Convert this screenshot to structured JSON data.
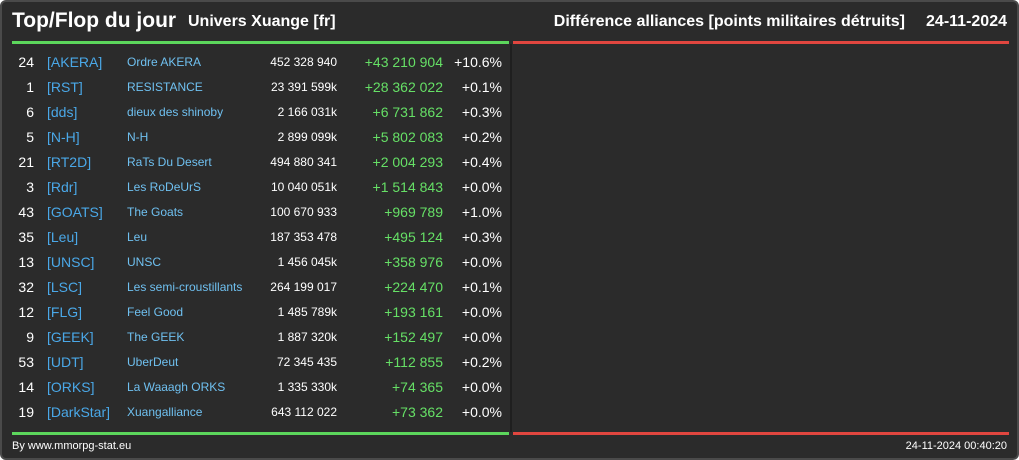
{
  "header": {
    "title": "Top/Flop du jour",
    "universe": "Univers Xuange [fr]",
    "metric": "Différence alliances [points militaires détruits]",
    "date": "24-11-2024"
  },
  "colors": {
    "top_bar": "#5cd65c",
    "flop_bar": "#e0463f",
    "positive_delta": "#66e066",
    "tag": "#4aa8e8",
    "name": "#6fc0f0",
    "background": "#2b2b2b"
  },
  "top_rows": [
    {
      "rank": "24",
      "tag": "[AKERA]",
      "name": "Ordre AKERA",
      "points": "452 328 940",
      "delta": "+43 210 904",
      "pct": "+10.6%"
    },
    {
      "rank": "1",
      "tag": "[RST]",
      "name": "RESISTANCE",
      "points": "23 391 599k",
      "delta": "+28 362 022",
      "pct": "+0.1%"
    },
    {
      "rank": "6",
      "tag": "[dds]",
      "name": "dieux des shinoby",
      "points": "2 166 031k",
      "delta": "+6 731 862",
      "pct": "+0.3%"
    },
    {
      "rank": "5",
      "tag": "[N-H]",
      "name": "N-H",
      "points": "2 899 099k",
      "delta": "+5 802 083",
      "pct": "+0.2%"
    },
    {
      "rank": "21",
      "tag": "[RT2D]",
      "name": "RaTs Du Desert",
      "points": "494 880 341",
      "delta": "+2 004 293",
      "pct": "+0.4%"
    },
    {
      "rank": "3",
      "tag": "[Rdr]",
      "name": "Les RoDeUrS",
      "points": "10 040 051k",
      "delta": "+1 514 843",
      "pct": "+0.0%"
    },
    {
      "rank": "43",
      "tag": "[GOATS]",
      "name": "The Goats",
      "points": "100 670 933",
      "delta": "+969 789",
      "pct": "+1.0%"
    },
    {
      "rank": "35",
      "tag": "[Leu]",
      "name": "Leu",
      "points": "187 353 478",
      "delta": "+495 124",
      "pct": "+0.3%"
    },
    {
      "rank": "13",
      "tag": "[UNSC]",
      "name": "UNSC",
      "points": "1 456 045k",
      "delta": "+358 976",
      "pct": "+0.0%"
    },
    {
      "rank": "32",
      "tag": "[LSC]",
      "name": "Les semi-croustillants",
      "points": "264 199 017",
      "delta": "+224 470",
      "pct": "+0.1%"
    },
    {
      "rank": "12",
      "tag": "[FLG]",
      "name": "Feel Good",
      "points": "1 485 789k",
      "delta": "+193 161",
      "pct": "+0.0%"
    },
    {
      "rank": "9",
      "tag": "[GEEK]",
      "name": "The GEEK",
      "points": "1 887 320k",
      "delta": "+152 497",
      "pct": "+0.0%"
    },
    {
      "rank": "53",
      "tag": "[UDT]",
      "name": "UberDeut",
      "points": "72 345 435",
      "delta": "+112 855",
      "pct": "+0.2%"
    },
    {
      "rank": "14",
      "tag": "[ORKS]",
      "name": "La Waaagh ORKS",
      "points": "1 335 330k",
      "delta": "+74 365",
      "pct": "+0.0%"
    },
    {
      "rank": "19",
      "tag": "[DarkStar]",
      "name": "Xuangalliance",
      "points": "643 112 022",
      "delta": "+73 362",
      "pct": "+0.0%"
    }
  ],
  "footer": {
    "source": "By www.mmorpg-stat.eu",
    "timestamp": "24-11-2024 00:40:20"
  }
}
